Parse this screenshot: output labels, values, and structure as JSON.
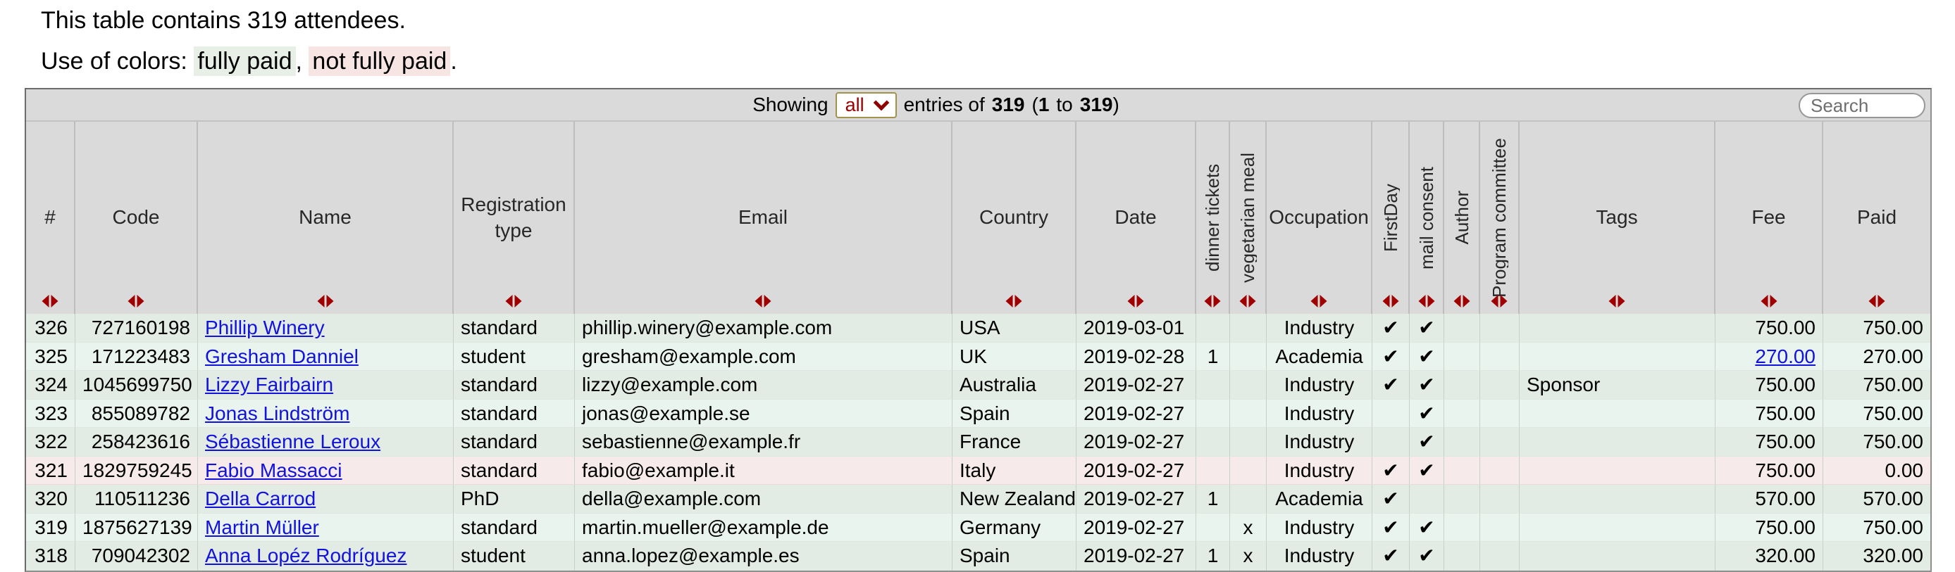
{
  "intro": {
    "attendee_line": "This table contains 319 attendees.",
    "colors_prefix": "Use of colors:",
    "fully_paid_label": "fully paid",
    "comma": ",",
    "not_fully_paid_label": "not fully paid",
    "period": "."
  },
  "toolbar": {
    "showing": "Showing",
    "page_size": "all",
    "entries_of": "entries of",
    "total": "319",
    "open_paren": "(",
    "from": "1",
    "to_word": "to",
    "to_value": "319",
    "close_paren": ")",
    "search_placeholder": "Search"
  },
  "icons": {
    "sort": "left-right-red-triangle-pair",
    "select_chevron": "chevron-down"
  },
  "colors": {
    "accent_red": "#a00000",
    "link_blue": "#1212dd",
    "header_bg": "#dadada",
    "row_fully_paid_dark": "#e3ebe5",
    "row_fully_paid_light": "#e9f4ee",
    "row_not_fully_paid": "#f7eaea",
    "legend_green_bg": "#e7efe6",
    "legend_pink_bg": "#f6e5e3"
  },
  "table": {
    "columns": [
      {
        "key": "num",
        "label": "#"
      },
      {
        "key": "code",
        "label": "Code"
      },
      {
        "key": "name",
        "label": "Name"
      },
      {
        "key": "registration_type",
        "label": "Registration type"
      },
      {
        "key": "email",
        "label": "Email"
      },
      {
        "key": "country",
        "label": "Country"
      },
      {
        "key": "date",
        "label": "Date"
      },
      {
        "key": "dinner_tickets",
        "label": "dinner tickets"
      },
      {
        "key": "vegetarian_meal",
        "label": "vegetarian meal"
      },
      {
        "key": "occupation",
        "label": "Occupation"
      },
      {
        "key": "first_day",
        "label": "FirstDay"
      },
      {
        "key": "mail_consent",
        "label": "mail consent"
      },
      {
        "key": "author",
        "label": "Author"
      },
      {
        "key": "program_committee",
        "label": "Program committee"
      },
      {
        "key": "tags",
        "label": "Tags"
      },
      {
        "key": "fee",
        "label": "Fee"
      },
      {
        "key": "paid",
        "label": "Paid"
      }
    ],
    "rows": [
      {
        "num": "326",
        "code": "727160198",
        "name": "Phillip Winery",
        "registration_type": "standard",
        "email": "phillip.winery@example.com",
        "country": "USA",
        "date": "2019-03-01",
        "dinner_tickets": "",
        "vegetarian_meal": "",
        "occupation": "Industry",
        "first_day": "✔",
        "mail_consent": "✔",
        "author": "",
        "program_committee": "",
        "tags": "",
        "fee": "750.00",
        "paid": "750.00",
        "variant": "dark",
        "fee_is_link": false
      },
      {
        "num": "325",
        "code": "171223483",
        "name": "Gresham Danniel",
        "registration_type": "student",
        "email": "gresham@example.com",
        "country": "UK",
        "date": "2019-02-28",
        "dinner_tickets": "1",
        "vegetarian_meal": "",
        "occupation": "Academia",
        "first_day": "✔",
        "mail_consent": "✔",
        "author": "",
        "program_committee": "",
        "tags": "",
        "fee": "270.00",
        "paid": "270.00",
        "variant": "light",
        "fee_is_link": true
      },
      {
        "num": "324",
        "code": "1045699750",
        "name": "Lizzy Fairbairn",
        "registration_type": "standard",
        "email": "lizzy@example.com",
        "country": "Australia",
        "date": "2019-02-27",
        "dinner_tickets": "",
        "vegetarian_meal": "",
        "occupation": "Industry",
        "first_day": "✔",
        "mail_consent": "✔",
        "author": "",
        "program_committee": "",
        "tags": "Sponsor",
        "fee": "750.00",
        "paid": "750.00",
        "variant": "dark",
        "fee_is_link": false
      },
      {
        "num": "323",
        "code": "855089782",
        "name": "Jonas Lindström",
        "registration_type": "standard",
        "email": "jonas@example.se",
        "country": "Spain",
        "date": "2019-02-27",
        "dinner_tickets": "",
        "vegetarian_meal": "",
        "occupation": "Industry",
        "first_day": "",
        "mail_consent": "✔",
        "author": "",
        "program_committee": "",
        "tags": "",
        "fee": "750.00",
        "paid": "750.00",
        "variant": "light",
        "fee_is_link": false
      },
      {
        "num": "322",
        "code": "258423616",
        "name": "Sébastienne Leroux",
        "registration_type": "standard",
        "email": "sebastienne@example.fr",
        "country": "France",
        "date": "2019-02-27",
        "dinner_tickets": "",
        "vegetarian_meal": "",
        "occupation": "Industry",
        "first_day": "",
        "mail_consent": "✔",
        "author": "",
        "program_committee": "",
        "tags": "",
        "fee": "750.00",
        "paid": "750.00",
        "variant": "dark",
        "fee_is_link": false
      },
      {
        "num": "321",
        "code": "1829759245",
        "name": "Fabio Massacci",
        "registration_type": "standard",
        "email": "fabio@example.it",
        "country": "Italy",
        "date": "2019-02-27",
        "dinner_tickets": "",
        "vegetarian_meal": "",
        "occupation": "Industry",
        "first_day": "✔",
        "mail_consent": "✔",
        "author": "",
        "program_committee": "",
        "tags": "",
        "fee": "750.00",
        "paid": "0.00",
        "variant": "unpaid",
        "fee_is_link": false
      },
      {
        "num": "320",
        "code": "110511236",
        "name": "Della Carrod",
        "registration_type": "PhD",
        "email": "della@example.com",
        "country": "New Zealand",
        "date": "2019-02-27",
        "dinner_tickets": "1",
        "vegetarian_meal": "",
        "occupation": "Academia",
        "first_day": "✔",
        "mail_consent": "",
        "author": "",
        "program_committee": "",
        "tags": "",
        "fee": "570.00",
        "paid": "570.00",
        "variant": "dark",
        "fee_is_link": false
      },
      {
        "num": "319",
        "code": "1875627139",
        "name": "Martin Müller",
        "registration_type": "standard",
        "email": "martin.mueller@example.de",
        "country": "Germany",
        "date": "2019-02-27",
        "dinner_tickets": "",
        "vegetarian_meal": "x",
        "occupation": "Industry",
        "first_day": "✔",
        "mail_consent": "✔",
        "author": "",
        "program_committee": "",
        "tags": "",
        "fee": "750.00",
        "paid": "750.00",
        "variant": "light",
        "fee_is_link": false
      },
      {
        "num": "318",
        "code": "709042302",
        "name": "Anna Lopéz Rodríguez",
        "registration_type": "student",
        "email": "anna.lopez@example.es",
        "country": "Spain",
        "date": "2019-02-27",
        "dinner_tickets": "1",
        "vegetarian_meal": "x",
        "occupation": "Industry",
        "first_day": "✔",
        "mail_consent": "✔",
        "author": "",
        "program_committee": "",
        "tags": "",
        "fee": "320.00",
        "paid": "320.00",
        "variant": "dark",
        "fee_is_link": false
      }
    ]
  }
}
